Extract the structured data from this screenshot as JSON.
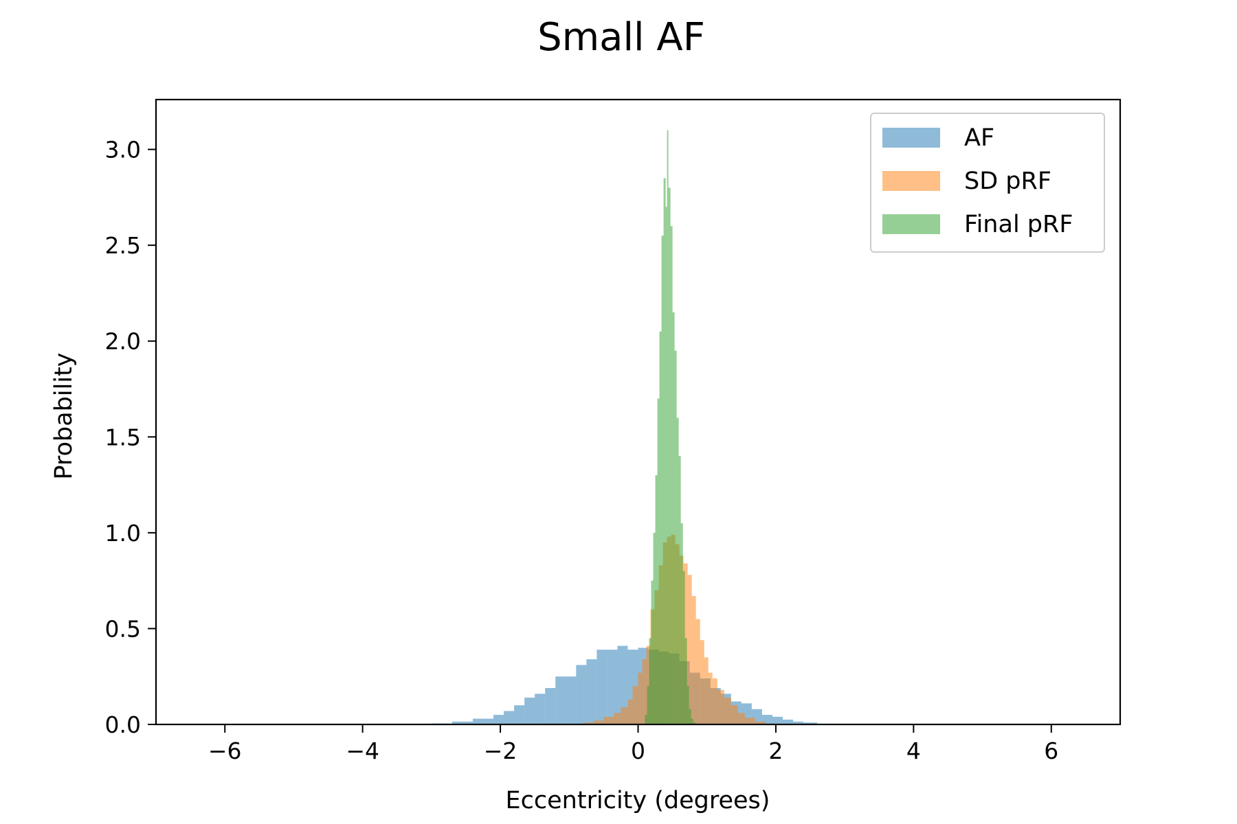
{
  "chart_data": {
    "type": "bar",
    "title": "Small AF",
    "xlabel": "Eccentricity (degrees)",
    "ylabel": "Probability",
    "xlim": [
      -7,
      7
    ],
    "ylim": [
      0,
      3.26
    ],
    "xticks": [
      -6,
      -4,
      -2,
      0,
      2,
      4,
      6
    ],
    "xtick_labels": [
      "−6",
      "−4",
      "−2",
      "0",
      "2",
      "4",
      "6"
    ],
    "yticks": [
      0,
      0.5,
      1,
      1.5,
      2,
      2.5,
      3
    ],
    "ytick_labels": [
      "0.0",
      "0.5",
      "1.0",
      "1.5",
      "2.0",
      "2.5",
      "3.0"
    ],
    "grid": false,
    "legend_position": "top-right",
    "series": [
      {
        "name": "AF",
        "color": "#1f77b4",
        "opacity": 0.5,
        "bins": [
          {
            "x0": -3.0,
            "x1": -2.7,
            "y": 0.005
          },
          {
            "x0": -2.7,
            "x1": -2.4,
            "y": 0.015
          },
          {
            "x0": -2.4,
            "x1": -2.1,
            "y": 0.03
          },
          {
            "x0": -2.1,
            "x1": -1.95,
            "y": 0.05
          },
          {
            "x0": -1.95,
            "x1": -1.8,
            "y": 0.07
          },
          {
            "x0": -1.8,
            "x1": -1.65,
            "y": 0.1
          },
          {
            "x0": -1.65,
            "x1": -1.5,
            "y": 0.14
          },
          {
            "x0": -1.5,
            "x1": -1.35,
            "y": 0.16
          },
          {
            "x0": -1.35,
            "x1": -1.2,
            "y": 0.19
          },
          {
            "x0": -1.2,
            "x1": -1.05,
            "y": 0.25
          },
          {
            "x0": -1.05,
            "x1": -0.9,
            "y": 0.25
          },
          {
            "x0": -0.9,
            "x1": -0.75,
            "y": 0.31
          },
          {
            "x0": -0.75,
            "x1": -0.6,
            "y": 0.34
          },
          {
            "x0": -0.6,
            "x1": -0.45,
            "y": 0.39
          },
          {
            "x0": -0.45,
            "x1": -0.3,
            "y": 0.39
          },
          {
            "x0": -0.3,
            "x1": -0.15,
            "y": 0.41
          },
          {
            "x0": -0.15,
            "x1": 0.0,
            "y": 0.39
          },
          {
            "x0": 0.0,
            "x1": 0.15,
            "y": 0.4
          },
          {
            "x0": 0.15,
            "x1": 0.3,
            "y": 0.39
          },
          {
            "x0": 0.3,
            "x1": 0.45,
            "y": 0.38
          },
          {
            "x0": 0.45,
            "x1": 0.6,
            "y": 0.37
          },
          {
            "x0": 0.6,
            "x1": 0.75,
            "y": 0.33
          },
          {
            "x0": 0.75,
            "x1": 0.9,
            "y": 0.27
          },
          {
            "x0": 0.9,
            "x1": 1.05,
            "y": 0.24
          },
          {
            "x0": 1.05,
            "x1": 1.2,
            "y": 0.19
          },
          {
            "x0": 1.2,
            "x1": 1.35,
            "y": 0.16
          },
          {
            "x0": 1.35,
            "x1": 1.5,
            "y": 0.12
          },
          {
            "x0": 1.5,
            "x1": 1.65,
            "y": 0.11
          },
          {
            "x0": 1.65,
            "x1": 1.8,
            "y": 0.08
          },
          {
            "x0": 1.8,
            "x1": 1.95,
            "y": 0.05
          },
          {
            "x0": 1.95,
            "x1": 2.1,
            "y": 0.04
          },
          {
            "x0": 2.1,
            "x1": 2.25,
            "y": 0.025
          },
          {
            "x0": 2.25,
            "x1": 2.4,
            "y": 0.015
          },
          {
            "x0": 2.4,
            "x1": 2.6,
            "y": 0.01
          },
          {
            "x0": 2.6,
            "x1": 2.9,
            "y": 0.004
          }
        ]
      },
      {
        "name": "SD pRF",
        "color": "#ff7f0e",
        "opacity": 0.5,
        "bins": [
          {
            "x0": -0.8,
            "x1": -0.65,
            "y": 0.01
          },
          {
            "x0": -0.65,
            "x1": -0.5,
            "y": 0.02
          },
          {
            "x0": -0.5,
            "x1": -0.35,
            "y": 0.04
          },
          {
            "x0": -0.35,
            "x1": -0.25,
            "y": 0.06
          },
          {
            "x0": -0.25,
            "x1": -0.15,
            "y": 0.09
          },
          {
            "x0": -0.15,
            "x1": -0.08,
            "y": 0.13
          },
          {
            "x0": -0.08,
            "x1": 0.0,
            "y": 0.2
          },
          {
            "x0": 0.0,
            "x1": 0.06,
            "y": 0.27
          },
          {
            "x0": 0.06,
            "x1": 0.12,
            "y": 0.34
          },
          {
            "x0": 0.12,
            "x1": 0.18,
            "y": 0.41
          },
          {
            "x0": 0.18,
            "x1": 0.24,
            "y": 0.6
          },
          {
            "x0": 0.24,
            "x1": 0.3,
            "y": 0.7
          },
          {
            "x0": 0.3,
            "x1": 0.36,
            "y": 0.83
          },
          {
            "x0": 0.36,
            "x1": 0.42,
            "y": 0.95
          },
          {
            "x0": 0.42,
            "x1": 0.48,
            "y": 0.98
          },
          {
            "x0": 0.48,
            "x1": 0.54,
            "y": 0.99
          },
          {
            "x0": 0.54,
            "x1": 0.6,
            "y": 0.94
          },
          {
            "x0": 0.6,
            "x1": 0.66,
            "y": 0.88
          },
          {
            "x0": 0.66,
            "x1": 0.72,
            "y": 0.84
          },
          {
            "x0": 0.72,
            "x1": 0.78,
            "y": 0.78
          },
          {
            "x0": 0.78,
            "x1": 0.84,
            "y": 0.67
          },
          {
            "x0": 0.84,
            "x1": 0.9,
            "y": 0.55
          },
          {
            "x0": 0.9,
            "x1": 0.96,
            "y": 0.44
          },
          {
            "x0": 0.96,
            "x1": 1.02,
            "y": 0.35
          },
          {
            "x0": 1.02,
            "x1": 1.08,
            "y": 0.27
          },
          {
            "x0": 1.08,
            "x1": 1.15,
            "y": 0.24
          },
          {
            "x0": 1.15,
            "x1": 1.25,
            "y": 0.18
          },
          {
            "x0": 1.25,
            "x1": 1.35,
            "y": 0.14
          },
          {
            "x0": 1.35,
            "x1": 1.45,
            "y": 0.1
          },
          {
            "x0": 1.45,
            "x1": 1.55,
            "y": 0.06
          },
          {
            "x0": 1.55,
            "x1": 1.7,
            "y": 0.035
          },
          {
            "x0": 1.7,
            "x1": 1.85,
            "y": 0.015
          }
        ]
      },
      {
        "name": "Final pRF",
        "color": "#2ca02c",
        "opacity": 0.5,
        "bins": [
          {
            "x0": 0.1,
            "x1": 0.13,
            "y": 0.05
          },
          {
            "x0": 0.13,
            "x1": 0.16,
            "y": 0.2
          },
          {
            "x0": 0.16,
            "x1": 0.19,
            "y": 0.45
          },
          {
            "x0": 0.19,
            "x1": 0.22,
            "y": 0.75
          },
          {
            "x0": 0.22,
            "x1": 0.25,
            "y": 1.0
          },
          {
            "x0": 0.25,
            "x1": 0.28,
            "y": 1.3
          },
          {
            "x0": 0.28,
            "x1": 0.31,
            "y": 1.7
          },
          {
            "x0": 0.31,
            "x1": 0.34,
            "y": 2.05
          },
          {
            "x0": 0.34,
            "x1": 0.37,
            "y": 2.55
          },
          {
            "x0": 0.37,
            "x1": 0.4,
            "y": 2.85
          },
          {
            "x0": 0.4,
            "x1": 0.42,
            "y": 2.7
          },
          {
            "x0": 0.42,
            "x1": 0.44,
            "y": 3.1
          },
          {
            "x0": 0.44,
            "x1": 0.47,
            "y": 2.8
          },
          {
            "x0": 0.47,
            "x1": 0.5,
            "y": 2.6
          },
          {
            "x0": 0.5,
            "x1": 0.53,
            "y": 2.15
          },
          {
            "x0": 0.53,
            "x1": 0.56,
            "y": 1.95
          },
          {
            "x0": 0.56,
            "x1": 0.59,
            "y": 1.6
          },
          {
            "x0": 0.59,
            "x1": 0.62,
            "y": 1.4
          },
          {
            "x0": 0.62,
            "x1": 0.65,
            "y": 1.05
          },
          {
            "x0": 0.65,
            "x1": 0.68,
            "y": 0.8
          },
          {
            "x0": 0.68,
            "x1": 0.71,
            "y": 0.45
          },
          {
            "x0": 0.71,
            "x1": 0.74,
            "y": 0.2
          },
          {
            "x0": 0.74,
            "x1": 0.77,
            "y": 0.08
          },
          {
            "x0": 0.77,
            "x1": 0.8,
            "y": 0.03
          },
          {
            "x0": 0.8,
            "x1": 0.83,
            "y": 0.01
          }
        ]
      }
    ]
  }
}
